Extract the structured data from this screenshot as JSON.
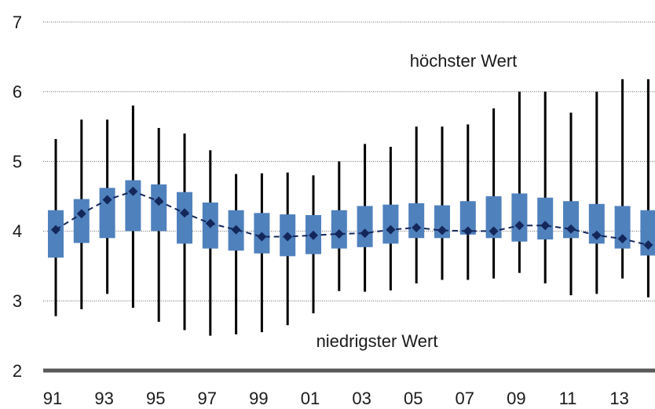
{
  "chart_data": {
    "type": "box",
    "categories": [
      "91",
      null,
      "93",
      null,
      "95",
      null,
      "97",
      null,
      "99",
      null,
      "01",
      null,
      "03",
      null,
      "05",
      null,
      "07",
      null,
      "09",
      null,
      "11",
      null,
      "13",
      null
    ],
    "max": [
      5.32,
      5.6,
      5.6,
      5.8,
      5.48,
      5.4,
      5.16,
      4.82,
      4.83,
      4.84,
      4.8,
      5.0,
      5.25,
      5.21,
      5.5,
      5.5,
      5.53,
      5.76,
      6.0,
      6.0,
      5.7,
      6.0,
      6.18,
      6.18
    ],
    "q3": [
      4.3,
      4.46,
      4.62,
      4.73,
      4.67,
      4.56,
      4.41,
      4.3,
      4.26,
      4.24,
      4.23,
      4.3,
      4.36,
      4.38,
      4.4,
      4.37,
      4.43,
      4.5,
      4.54,
      4.48,
      4.43,
      4.39,
      4.36,
      4.3
    ],
    "mean": [
      4.02,
      4.25,
      4.45,
      4.57,
      4.43,
      4.26,
      4.11,
      4.02,
      3.92,
      3.92,
      3.94,
      3.96,
      3.97,
      4.02,
      4.05,
      4.01,
      4.0,
      4.0,
      4.08,
      4.08,
      4.03,
      3.94,
      3.89,
      3.8
    ],
    "q1": [
      3.62,
      3.83,
      3.9,
      4.0,
      4.0,
      3.82,
      3.75,
      3.72,
      3.68,
      3.64,
      3.67,
      3.75,
      3.77,
      3.82,
      3.9,
      3.9,
      3.95,
      3.9,
      3.85,
      3.88,
      3.9,
      3.82,
      3.75,
      3.65
    ],
    "min": [
      2.78,
      2.88,
      3.1,
      2.9,
      2.7,
      2.58,
      2.5,
      2.52,
      2.55,
      2.65,
      2.82,
      3.14,
      3.13,
      3.15,
      3.25,
      3.3,
      3.3,
      3.32,
      3.4,
      3.25,
      3.08,
      3.1,
      3.32,
      3.05
    ],
    "box_color": "#4f81bd",
    "whisker_color": "#000000",
    "mean_color": "#14275a",
    "ylim": [
      2,
      7
    ],
    "yticks": [
      2,
      3,
      4,
      5,
      6,
      7
    ],
    "grid": true,
    "annotations": [
      "höchster Wert",
      "niedrigster Wert"
    ]
  }
}
